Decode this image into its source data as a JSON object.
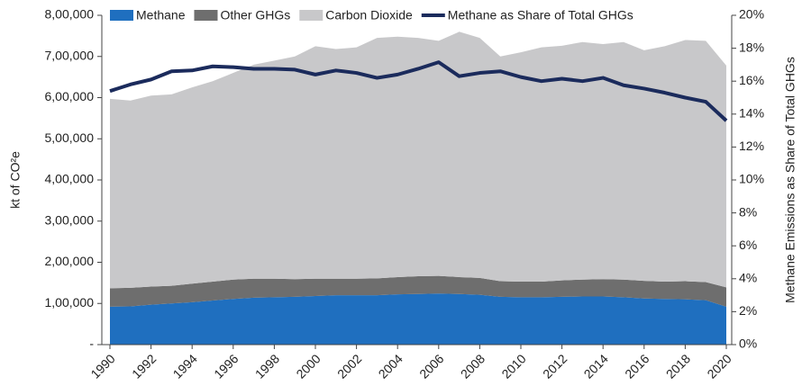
{
  "chart_data": {
    "type": "stacked-area-line",
    "y_label": "kt of CO²e",
    "y2_label": "Methane Emissions as Share of Total GHGs",
    "categories": [
      "1990",
      null,
      "1992",
      null,
      "1994",
      null,
      "1996",
      null,
      "1998",
      null,
      "2000",
      null,
      "2002",
      null,
      "2004",
      null,
      "2006",
      null,
      "2008",
      null,
      "2010",
      null,
      "2012",
      null,
      "2014",
      null,
      "2016",
      null,
      "2018",
      null,
      "2020"
    ],
    "series": [
      {
        "name": "Methane",
        "color": "#1f6fbf",
        "values": [
          92000,
          93000,
          97000,
          100000,
          103000,
          107000,
          111000,
          114000,
          115000,
          116000,
          118000,
          120000,
          120000,
          120000,
          122000,
          123000,
          124000,
          123000,
          121000,
          116000,
          115000,
          115000,
          116000,
          117000,
          117000,
          115000,
          112000,
          111000,
          110000,
          108000,
          92000
        ]
      },
      {
        "name": "Other GHGs",
        "color": "#6e6e6e",
        "values": [
          45000,
          45000,
          44000,
          43000,
          45000,
          46000,
          47000,
          46000,
          45000,
          43000,
          42000,
          40000,
          40000,
          41000,
          42000,
          43000,
          43000,
          41000,
          41000,
          38000,
          38000,
          38000,
          40000,
          41000,
          42000,
          43000,
          43000,
          42000,
          44000,
          44000,
          47000
        ]
      },
      {
        "name": "Carbon Dioxide",
        "color": "#c8c8ca",
        "values": [
          460000,
          455000,
          464000,
          465000,
          477000,
          487000,
          502000,
          520000,
          530000,
          541000,
          565000,
          558000,
          562000,
          584000,
          584000,
          579000,
          571000,
          596000,
          583000,
          546000,
          557000,
          569000,
          570000,
          577000,
          571000,
          577000,
          560000,
          572000,
          586000,
          586000,
          539000
        ]
      },
      {
        "name": "Methane as Share of Total GHGs",
        "color": "#1b2b5c",
        "axis": "y2",
        "values": [
          15.4,
          15.8,
          16.1,
          16.6,
          16.65,
          16.9,
          16.85,
          16.75,
          16.75,
          16.7,
          16.4,
          16.65,
          16.5,
          16.2,
          16.4,
          16.75,
          17.15,
          16.3,
          16.5,
          16.6,
          16.25,
          16.0,
          16.15,
          16.0,
          16.2,
          15.75,
          15.55,
          15.3,
          15.0,
          14.75,
          13.6
        ]
      }
    ],
    "ylim": [
      0,
      800000
    ],
    "yticks": [
      {
        "value": 0,
        "label": "-"
      },
      {
        "value": 100000,
        "label": "1,00,000"
      },
      {
        "value": 200000,
        "label": "2,00,000"
      },
      {
        "value": 300000,
        "label": "3,00,000"
      },
      {
        "value": 400000,
        "label": "4,00,000"
      },
      {
        "value": 500000,
        "label": "5,00,000"
      },
      {
        "value": 600000,
        "label": "6,00,000"
      },
      {
        "value": 700000,
        "label": "7,00,000"
      },
      {
        "value": 800000,
        "label": "8,00,000"
      }
    ],
    "y2lim": [
      0,
      20
    ],
    "y2ticks": [
      {
        "value": 0,
        "label": "0%"
      },
      {
        "value": 2,
        "label": "2%"
      },
      {
        "value": 4,
        "label": "4%"
      },
      {
        "value": 6,
        "label": "6%"
      },
      {
        "value": 8,
        "label": "8%"
      },
      {
        "value": 10,
        "label": "10%"
      },
      {
        "value": 12,
        "label": "12%"
      },
      {
        "value": 14,
        "label": "14%"
      },
      {
        "value": 16,
        "label": "16%"
      },
      {
        "value": 18,
        "label": "18%"
      },
      {
        "value": 20,
        "label": "20%"
      }
    ],
    "legend": "top"
  }
}
